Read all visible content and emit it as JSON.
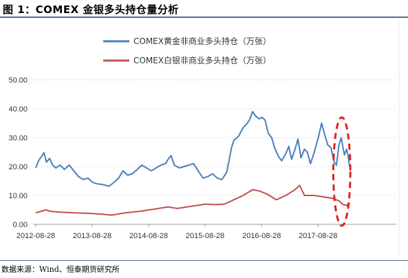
{
  "figure": {
    "title": "图 1：COMEX 金银多头持仓量分析",
    "source": "数据来源：Wind、恒泰期货研究所"
  },
  "chart_data": {
    "type": "line",
    "title": "",
    "xlabel": "",
    "ylabel": "",
    "ylim": [
      0,
      50
    ],
    "yticks": [
      "0.00",
      "10.00",
      "20.00",
      "30.00",
      "40.00",
      "50.00"
    ],
    "xticks": [
      "2012-08-28",
      "2013-08-28",
      "2014-08-28",
      "2015-08-28",
      "2016-08-28",
      "2017-08-28"
    ],
    "xrange": [
      "2012-08-28",
      "2018-03-20"
    ],
    "grid": "y-dashed",
    "legend": "top-center",
    "series": [
      {
        "name": "COMEX黄金非商业多头持仓（万张）",
        "color": "#4a7ebb",
        "points": [
          [
            "2012-08-28",
            19.5
          ],
          [
            "2012-09-15",
            22.0
          ],
          [
            "2012-10-05",
            23.5
          ],
          [
            "2012-10-20",
            24.8
          ],
          [
            "2012-11-05",
            21.5
          ],
          [
            "2012-11-25",
            22.8
          ],
          [
            "2012-12-15",
            20.5
          ],
          [
            "2013-01-05",
            19.5
          ],
          [
            "2013-02-01",
            20.5
          ],
          [
            "2013-03-01",
            19.0
          ],
          [
            "2013-04-01",
            20.5
          ],
          [
            "2013-05-01",
            18.5
          ],
          [
            "2013-06-01",
            16.5
          ],
          [
            "2013-07-01",
            15.5
          ],
          [
            "2013-08-01",
            16.0
          ],
          [
            "2013-09-01",
            14.5
          ],
          [
            "2013-10-01",
            14.0
          ],
          [
            "2013-11-01",
            13.8
          ],
          [
            "2013-12-15",
            13.2
          ],
          [
            "2014-01-15",
            14.5
          ],
          [
            "2014-02-15",
            16.0
          ],
          [
            "2014-03-15",
            18.5
          ],
          [
            "2014-04-15",
            17.0
          ],
          [
            "2014-05-15",
            17.5
          ],
          [
            "2014-06-15",
            19.0
          ],
          [
            "2014-07-15",
            20.5
          ],
          [
            "2014-08-15",
            19.5
          ],
          [
            "2014-09-15",
            18.5
          ],
          [
            "2014-10-15",
            19.5
          ],
          [
            "2014-11-15",
            20.5
          ],
          [
            "2014-12-15",
            21.0
          ],
          [
            "2015-01-01",
            22.5
          ],
          [
            "2015-01-20",
            23.8
          ],
          [
            "2015-02-10",
            20.5
          ],
          [
            "2015-03-15",
            19.5
          ],
          [
            "2015-04-15",
            20.0
          ],
          [
            "2015-05-15",
            20.5
          ],
          [
            "2015-06-15",
            21.0
          ],
          [
            "2015-07-15",
            18.5
          ],
          [
            "2015-08-15",
            16.0
          ],
          [
            "2015-09-15",
            16.5
          ],
          [
            "2015-10-15",
            17.5
          ],
          [
            "2015-11-15",
            16.0
          ],
          [
            "2015-12-15",
            15.5
          ],
          [
            "2016-01-15",
            18.0
          ],
          [
            "2016-02-01",
            22.5
          ],
          [
            "2016-02-15",
            26.5
          ],
          [
            "2016-03-01",
            29.0
          ],
          [
            "2016-04-01",
            30.5
          ],
          [
            "2016-05-01",
            33.5
          ],
          [
            "2016-05-20",
            34.5
          ],
          [
            "2016-06-10",
            36.0
          ],
          [
            "2016-07-01",
            39.0
          ],
          [
            "2016-07-20",
            37.5
          ],
          [
            "2016-08-10",
            36.5
          ],
          [
            "2016-09-01",
            37.0
          ],
          [
            "2016-09-20",
            36.0
          ],
          [
            "2016-10-10",
            31.5
          ],
          [
            "2016-11-01",
            30.0
          ],
          [
            "2016-11-20",
            26.5
          ],
          [
            "2016-12-15",
            23.5
          ],
          [
            "2017-01-05",
            22.0
          ],
          [
            "2017-02-01",
            24.5
          ],
          [
            "2017-02-20",
            27.0
          ],
          [
            "2017-03-10",
            22.5
          ],
          [
            "2017-04-01",
            26.0
          ],
          [
            "2017-04-20",
            29.5
          ],
          [
            "2017-05-10",
            23.0
          ],
          [
            "2017-06-01",
            26.0
          ],
          [
            "2017-06-20",
            25.0
          ],
          [
            "2017-07-10",
            21.0
          ],
          [
            "2017-08-01",
            24.5
          ],
          [
            "2017-09-01",
            30.5
          ],
          [
            "2017-09-20",
            35.0
          ],
          [
            "2017-10-10",
            31.0
          ],
          [
            "2017-10-30",
            27.5
          ],
          [
            "2017-11-20",
            26.5
          ],
          [
            "2017-12-10",
            21.5
          ],
          [
            "2017-12-25",
            20.5
          ],
          [
            "2018-01-10",
            27.5
          ],
          [
            "2018-01-25",
            30.0
          ],
          [
            "2018-02-15",
            24.0
          ],
          [
            "2018-03-01",
            26.0
          ],
          [
            "2018-03-10",
            24.0
          ],
          [
            "2018-03-20",
            20.0
          ]
        ]
      },
      {
        "name": "COMEX白银非商业多头持仓（万张）",
        "color": "#c0504d",
        "points": [
          [
            "2012-08-28",
            4.0
          ],
          [
            "2012-10-01",
            4.5
          ],
          [
            "2012-11-01",
            5.0
          ],
          [
            "2012-12-01",
            4.5
          ],
          [
            "2013-02-01",
            4.2
          ],
          [
            "2013-05-01",
            4.0
          ],
          [
            "2013-08-01",
            3.8
          ],
          [
            "2013-11-01",
            3.5
          ],
          [
            "2014-01-01",
            3.2
          ],
          [
            "2014-04-01",
            4.0
          ],
          [
            "2014-07-01",
            4.5
          ],
          [
            "2014-09-01",
            5.0
          ],
          [
            "2014-11-01",
            5.5
          ],
          [
            "2015-01-01",
            6.0
          ],
          [
            "2015-03-01",
            5.5
          ],
          [
            "2015-05-01",
            6.0
          ],
          [
            "2015-07-01",
            6.5
          ],
          [
            "2015-09-01",
            7.0
          ],
          [
            "2015-11-01",
            6.8
          ],
          [
            "2016-01-01",
            7.0
          ],
          [
            "2016-03-01",
            8.5
          ],
          [
            "2016-05-01",
            10.0
          ],
          [
            "2016-07-01",
            12.0
          ],
          [
            "2016-08-15",
            11.5
          ],
          [
            "2016-10-01",
            10.5
          ],
          [
            "2016-12-01",
            8.5
          ],
          [
            "2017-02-01",
            10.0
          ],
          [
            "2017-04-01",
            12.0
          ],
          [
            "2017-05-01",
            13.5
          ],
          [
            "2017-06-01",
            10.0
          ],
          [
            "2017-08-01",
            10.0
          ],
          [
            "2017-10-01",
            9.5
          ],
          [
            "2017-12-01",
            9.0
          ],
          [
            "2018-01-15",
            8.0
          ],
          [
            "2018-02-01",
            7.0
          ],
          [
            "2018-03-01",
            6.5
          ],
          [
            "2018-03-20",
            7.5
          ]
        ]
      }
    ],
    "highlight": {
      "shape": "dashed-ellipse",
      "color": "#e02020",
      "from": "2017-12-05",
      "to": "2018-03-25",
      "ylim": [
        -0.5,
        37
      ]
    }
  }
}
